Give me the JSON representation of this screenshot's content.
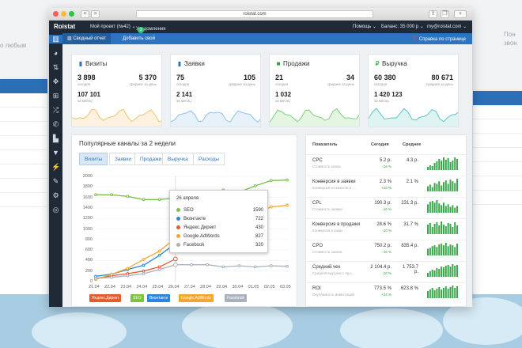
{
  "background": {
    "left_text": "о любым",
    "right_text": [
      "Пон",
      "звон"
    ]
  },
  "browser": {
    "url": "roistat.com",
    "nav_back": "<",
    "nav_forward": ">"
  },
  "topbar": {
    "logo": "Roistat",
    "project": "Мой проект (№42) ⌄",
    "notifications_label": "Уведомления",
    "notifications_count": "3",
    "help": "Помощь ⌄",
    "balance": "Баланс: 35 000 р ⌄",
    "user": "my@roistat.com ⌄"
  },
  "subbar": {
    "tabs": [
      {
        "label": "Сводный отчет",
        "active": true
      },
      {
        "label": "Добавить свой",
        "active": false
      }
    ],
    "help_link": "Справка по странице"
  },
  "sidebar_icons": [
    "bar-chart-icon",
    "pie-chart-icon",
    "sort-icon",
    "target-icon",
    "sitemap-icon",
    "shuffle-icon",
    "phone-icon",
    "bag-icon",
    "filter-icon",
    "plug-icon",
    "wrench-icon",
    "gear-icon",
    "eye-off-icon"
  ],
  "kpis": [
    {
      "title": "Визиты",
      "icon": "▮",
      "icon_color": "#2c74c0",
      "today": "3 898",
      "today_label": "сегодня",
      "avg": "5 370",
      "avg_label": "среднее за день",
      "month": "107 101",
      "month_label": "за месяц",
      "color": "#f3c26b",
      "fill": "#fdf2df"
    },
    {
      "title": "Заявки",
      "icon": "▮",
      "icon_color": "#2c74c0",
      "today": "75",
      "today_label": "сегодня",
      "avg": "105",
      "avg_label": "среднее за день",
      "month": "2 141",
      "month_label": "за месяц",
      "color": "#8fc1e8",
      "fill": "#e7f1fa"
    },
    {
      "title": "Продажи",
      "icon": "■",
      "icon_color": "#2e9f3e",
      "today": "21",
      "today_label": "сегодня",
      "avg": "34",
      "avg_label": "среднее за день",
      "month": "1 032",
      "month_label": "за месяц",
      "color": "#7fd17a",
      "fill": "#e4f6e2"
    },
    {
      "title": "Выручка",
      "icon": "₽",
      "icon_color": "#2e9f3e",
      "today": "60 380",
      "today_label": "сегодня",
      "avg": "80 671",
      "avg_label": "среднее за день",
      "month": "1 420 123",
      "month_label": "за месяц",
      "color": "#5cc7c0",
      "fill": "#def4f2"
    }
  ],
  "channels_panel": {
    "title": "Популярные каналы за 2 недели",
    "tabs": [
      {
        "label": "Визиты",
        "active": true
      },
      {
        "label": "Заявки",
        "active": false
      },
      {
        "label": "Продажи",
        "active": false
      },
      {
        "label": "Выручка",
        "active": false
      },
      {
        "label": "Расходы",
        "active": false
      }
    ],
    "tooltip": {
      "date": "26 апреля",
      "rows": [
        {
          "name": "SEO",
          "value": "1590",
          "color": "#7cc243"
        },
        {
          "name": "Вконтакте",
          "value": "722",
          "color": "#2f86d6"
        },
        {
          "name": "Яндекс.Директ",
          "value": "430",
          "color": "#e35b2e"
        },
        {
          "name": "Google.AdWords",
          "value": "827",
          "color": "#f0a830"
        },
        {
          "name": "Facebook",
          "value": "320",
          "color": "#a9b2bc"
        }
      ]
    }
  },
  "chart_data": {
    "type": "line",
    "x": [
      "21.04",
      "22.04",
      "23.04",
      "24.04",
      "25.04",
      "26.04",
      "27.04",
      "28.04",
      "29.04",
      "30.04",
      "01.05",
      "02.05",
      "03.05"
    ],
    "ylim": [
      0,
      2000
    ],
    "yticks": [
      "0",
      "200",
      "400",
      "600",
      "800",
      "1000",
      "1200",
      "1400",
      "1600",
      "1800",
      "2000"
    ],
    "legend_position": "bottom",
    "series": [
      {
        "name": "Яндекс.Директ",
        "color": "#e35b2e",
        "values": [
          60,
          110,
          150,
          200,
          280,
          430,
          null,
          null,
          null,
          null,
          null,
          null,
          null
        ]
      },
      {
        "name": "SEO",
        "color": "#7cc243",
        "values": [
          1650,
          1650,
          1620,
          1560,
          1560,
          1590,
          1650,
          1640,
          1740,
          1700,
          1820,
          1920,
          1930
        ]
      },
      {
        "name": "Вконтакте",
        "color": "#2f86d6",
        "values": [
          100,
          140,
          230,
          310,
          500,
          722,
          null,
          null,
          null,
          null,
          null,
          null,
          null
        ]
      },
      {
        "name": "Google.AdWords",
        "color": "#f0a830",
        "values": [
          40,
          140,
          250,
          420,
          580,
          827,
          1000,
          1100,
          1180,
          1220,
          1300,
          1420,
          1450
        ]
      },
      {
        "name": "Facebook",
        "color": "#a9b2bc",
        "values": [
          60,
          80,
          110,
          150,
          230,
          320,
          320,
          320,
          280,
          300,
          280,
          300,
          290
        ]
      }
    ]
  },
  "metrics_panel": {
    "headers": {
      "name": "Показатель",
      "today": "Сегодня",
      "avg": "Среднее"
    },
    "rows": [
      {
        "name": "CPC",
        "sub": "Стоимость клика",
        "today": "5.2 р.",
        "delta": "-16 %",
        "avg": "4.3 р.",
        "bars": [
          4,
          6,
          5,
          9,
          11,
          14,
          12,
          16,
          13,
          15,
          10,
          12,
          16,
          14
        ]
      },
      {
        "name": "Конверсия в заявки",
        "sub": "Конверсия из визитов в ...",
        "today": "2.3 %",
        "delta": "+10 %",
        "avg": "2.1 %",
        "bars": [
          6,
          8,
          5,
          10,
          9,
          12,
          7,
          11,
          13,
          9,
          14,
          12,
          10,
          15
        ]
      },
      {
        "name": "CPL",
        "sub": "Стоимость заявки",
        "today": "190.3 р.",
        "delta": "-16 %",
        "avg": "231.3 р.",
        "bars": [
          10,
          13,
          14,
          12,
          15,
          11,
          9,
          12,
          8,
          10,
          7,
          9,
          6,
          8
        ]
      },
      {
        "name": "Конверсия в продажи",
        "sub": "Конверсия в заказ",
        "today": "28.6 %",
        "delta": "-10 %",
        "avg": "31.7 %",
        "bars": [
          12,
          14,
          9,
          13,
          15,
          11,
          16,
          12,
          10,
          14,
          13,
          9,
          15,
          11
        ]
      },
      {
        "name": "CPO",
        "sub": "Стоимость заказа",
        "today": "750.2 р.",
        "delta": "-16 %",
        "avg": "835.4 р.",
        "bars": [
          8,
          9,
          11,
          12,
          10,
          13,
          14,
          12,
          15,
          11,
          13,
          12,
          10,
          14
        ]
      },
      {
        "name": "Средний чек",
        "sub": "Средняя выручка с про...",
        "today": "2 104.4 р.",
        "delta": "-10 %",
        "avg": "1 753.7 р.",
        "bars": [
          5,
          7,
          9,
          8,
          11,
          10,
          13,
          12,
          14,
          15,
          13,
          16,
          14,
          15
        ]
      },
      {
        "name": "ROI",
        "sub": "Окупаемость инвестиций",
        "today": "773.5 %",
        "delta": "+24 %",
        "avg": "623.8 %",
        "bars": [
          9,
          11,
          13,
          10,
          12,
          14,
          11,
          13,
          15,
          12,
          14,
          16,
          13,
          15
        ]
      }
    ]
  }
}
